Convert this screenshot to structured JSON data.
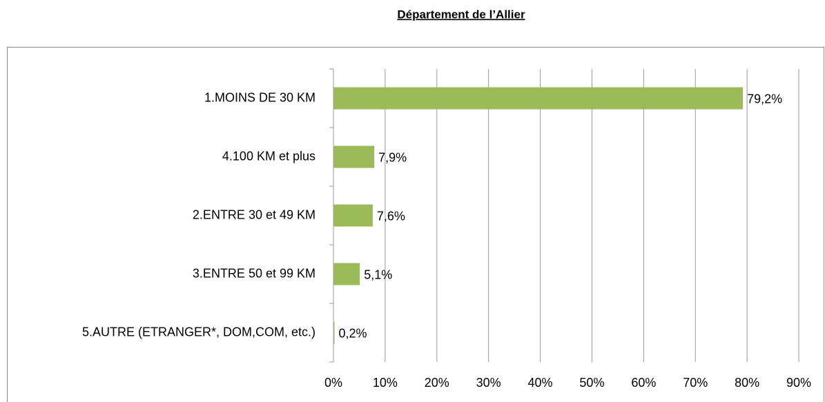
{
  "chart_data": {
    "type": "hbar",
    "title": "Département de l’Allier",
    "categories": [
      "1.MOINS DE 30 KM",
      "4.100 KM et plus",
      "2.ENTRE 30 et 49 KM",
      "3.ENTRE 50 et 99 KM",
      "5.AUTRE (ETRANGER*, DOM,COM, etc.)"
    ],
    "values": [
      79.2,
      7.9,
      7.6,
      5.1,
      0.2
    ],
    "value_labels": [
      "79,2%",
      "7,9%",
      "7,6%",
      "5,1%",
      "0,2%"
    ],
    "color": "#9bbb59",
    "xlim": [
      0,
      90
    ],
    "xticks": [
      {
        "value": 0,
        "label": "0%"
      },
      {
        "value": 10,
        "label": "10%"
      },
      {
        "value": 20,
        "label": "20%"
      },
      {
        "value": 30,
        "label": "30%"
      },
      {
        "value": 40,
        "label": "40%"
      },
      {
        "value": 50,
        "label": "50%"
      },
      {
        "value": 60,
        "label": "60%"
      },
      {
        "value": 70,
        "label": "70%"
      },
      {
        "value": 80,
        "label": "80%"
      },
      {
        "value": 90,
        "label": "90%"
      }
    ],
    "grid": true
  }
}
